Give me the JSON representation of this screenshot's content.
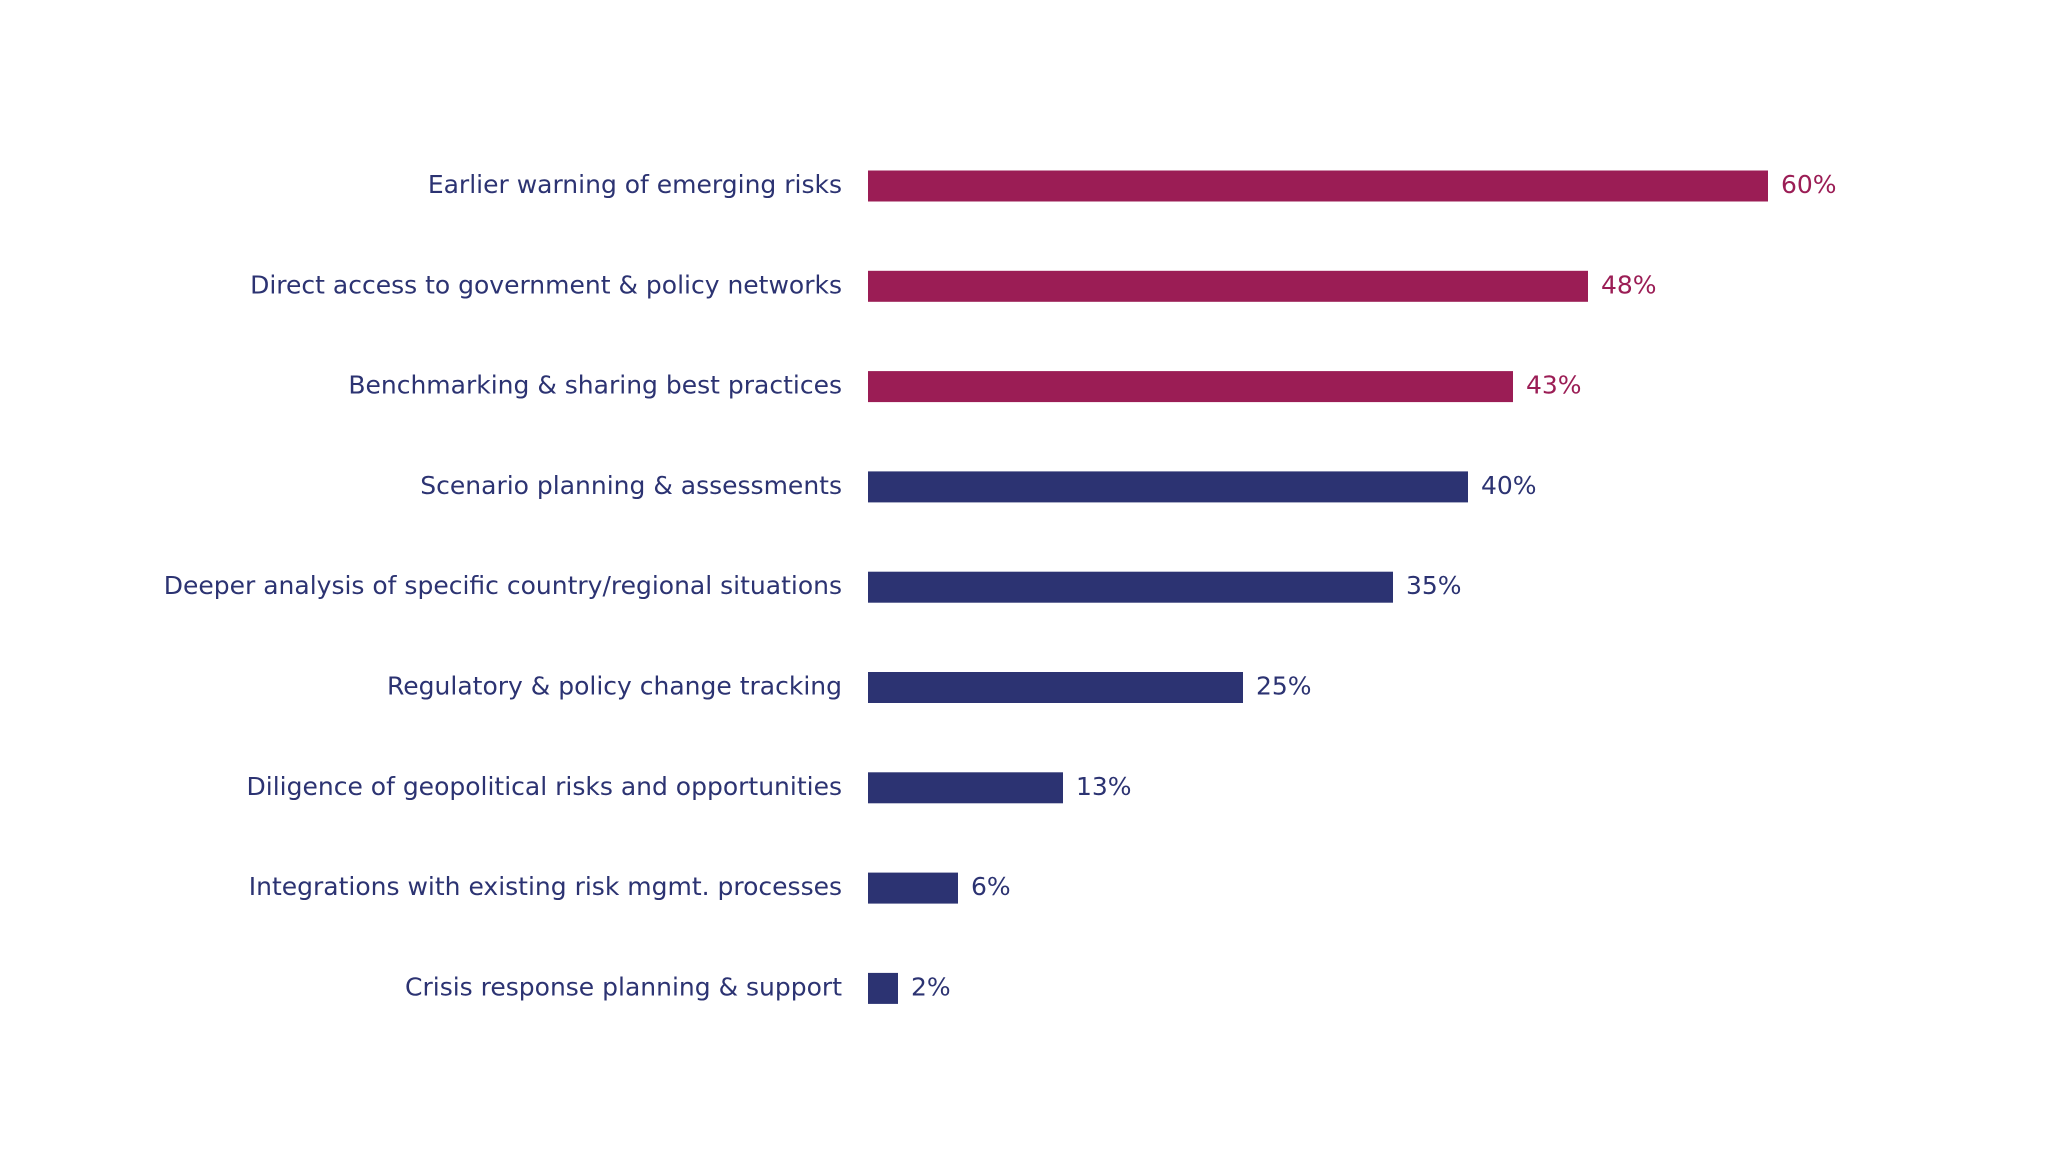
{
  "chart_data": {
    "type": "bar",
    "orientation": "horizontal",
    "categories": [
      "Earlier warning of emerging risks",
      "Direct access to government & policy networks",
      "Benchmarking & sharing best practices",
      "Scenario planning & assessments",
      "Deeper analysis of specific country/regional situations",
      "Regulatory & policy change tracking",
      "Diligence of geopolitical risks and opportunities",
      "Integrations with existing risk mgmt. processes",
      "Crisis response planning & support"
    ],
    "values": [
      60,
      48,
      43,
      40,
      35,
      25,
      13,
      6,
      2
    ],
    "value_labels": [
      "60%",
      "48%",
      "43%",
      "40%",
      "35%",
      "25%",
      "13%",
      "6%",
      "2%"
    ],
    "colors": [
      "#9b1d55",
      "#9b1d55",
      "#9b1d55",
      "#2c3372",
      "#2c3372",
      "#2c3372",
      "#2c3372",
      "#2c3372",
      "#2c3372"
    ]
  }
}
